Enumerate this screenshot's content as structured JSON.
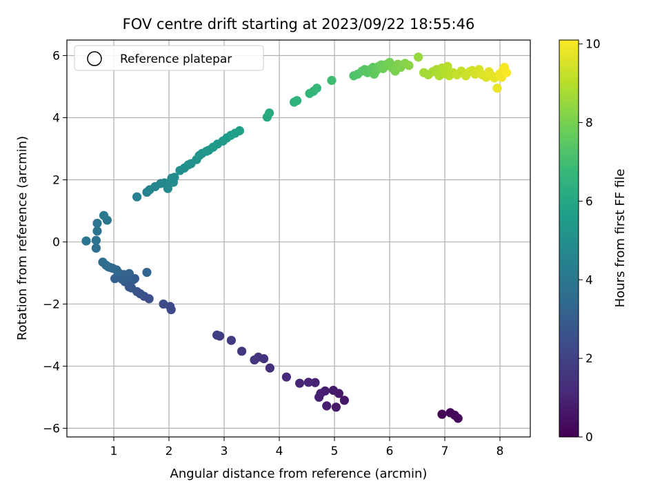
{
  "chart_data": {
    "type": "scatter",
    "title": "FOV centre drift starting at 2023/09/22 18:55:46",
    "xlabel": "Angular distance from reference (arcmin)",
    "ylabel": "Rotation from reference (arcmin)",
    "xlim": [
      0.15,
      8.55
    ],
    "ylim": [
      -6.28,
      6.5
    ],
    "xticks": [
      1,
      2,
      3,
      4,
      5,
      6,
      7,
      8
    ],
    "yticks": [
      -6,
      -4,
      -2,
      0,
      2,
      4,
      6
    ],
    "grid": true,
    "legend": {
      "entries": [
        "Reference platepar"
      ],
      "position": "top-left",
      "marker": "open-circle"
    },
    "colorbar": {
      "label": "Hours from first FF file",
      "range": [
        0,
        10.1
      ],
      "ticks": [
        0,
        2,
        4,
        6,
        8,
        10
      ],
      "colormap": "viridis",
      "colors": [
        "#440154",
        "#482878",
        "#3e4989",
        "#31688e",
        "#26828e",
        "#1f9e89",
        "#35b779",
        "#6ece58",
        "#b5de2b",
        "#fde725"
      ]
    },
    "points": [
      {
        "x": 6.95,
        "y": -5.55,
        "t": 0.05
      },
      {
        "x": 7.1,
        "y": -5.5,
        "t": 0.1
      },
      {
        "x": 7.18,
        "y": -5.58,
        "t": 0.15
      },
      {
        "x": 7.24,
        "y": -5.68,
        "t": 0.2
      },
      {
        "x": 5.18,
        "y": -5.1,
        "t": 0.6
      },
      {
        "x": 5.08,
        "y": -4.88,
        "t": 0.65
      },
      {
        "x": 5.03,
        "y": -5.32,
        "t": 0.7
      },
      {
        "x": 4.98,
        "y": -4.78,
        "t": 0.75
      },
      {
        "x": 4.86,
        "y": -5.28,
        "t": 0.8
      },
      {
        "x": 4.83,
        "y": -4.8,
        "t": 0.85
      },
      {
        "x": 4.75,
        "y": -4.88,
        "t": 0.9
      },
      {
        "x": 4.72,
        "y": -5.0,
        "t": 0.95
      },
      {
        "x": 4.65,
        "y": -4.53,
        "t": 1.0
      },
      {
        "x": 4.53,
        "y": -4.52,
        "t": 1.05
      },
      {
        "x": 4.37,
        "y": -4.55,
        "t": 1.1
      },
      {
        "x": 4.13,
        "y": -4.35,
        "t": 1.2
      },
      {
        "x": 3.83,
        "y": -4.06,
        "t": 1.35
      },
      {
        "x": 3.72,
        "y": -3.76,
        "t": 1.45
      },
      {
        "x": 3.62,
        "y": -3.71,
        "t": 1.5
      },
      {
        "x": 3.55,
        "y": -3.8,
        "t": 1.55
      },
      {
        "x": 3.32,
        "y": -3.52,
        "t": 1.65
      },
      {
        "x": 3.13,
        "y": -3.17,
        "t": 1.75
      },
      {
        "x": 2.92,
        "y": -3.03,
        "t": 1.85
      },
      {
        "x": 2.87,
        "y": -3.0,
        "t": 1.9
      },
      {
        "x": 2.04,
        "y": -2.18,
        "t": 2.2
      },
      {
        "x": 2.02,
        "y": -2.08,
        "t": 2.25
      },
      {
        "x": 1.9,
        "y": -2.0,
        "t": 2.3
      },
      {
        "x": 1.64,
        "y": -1.83,
        "t": 2.45
      },
      {
        "x": 1.55,
        "y": -1.75,
        "t": 2.5
      },
      {
        "x": 1.48,
        "y": -1.67,
        "t": 2.55
      },
      {
        "x": 1.42,
        "y": -1.6,
        "t": 2.6
      },
      {
        "x": 1.32,
        "y": -1.48,
        "t": 2.7
      },
      {
        "x": 1.28,
        "y": -1.45,
        "t": 2.75
      },
      {
        "x": 1.2,
        "y": -1.28,
        "t": 2.85
      },
      {
        "x": 1.35,
        "y": -1.22,
        "t": 2.9
      },
      {
        "x": 1.38,
        "y": -1.18,
        "t": 2.95
      },
      {
        "x": 1.15,
        "y": -1.2,
        "t": 3.0
      },
      {
        "x": 1.02,
        "y": -1.18,
        "t": 3.05
      },
      {
        "x": 1.25,
        "y": -1.12,
        "t": 3.1
      },
      {
        "x": 1.18,
        "y": -1.05,
        "t": 3.15
      },
      {
        "x": 1.28,
        "y": -1.02,
        "t": 3.2
      },
      {
        "x": 1.08,
        "y": -0.98,
        "t": 3.25
      },
      {
        "x": 1.6,
        "y": -0.98,
        "t": 3.3
      },
      {
        "x": 1.05,
        "y": -0.9,
        "t": 3.35
      },
      {
        "x": 0.98,
        "y": -0.85,
        "t": 3.4
      },
      {
        "x": 0.93,
        "y": -0.82,
        "t": 3.45
      },
      {
        "x": 0.9,
        "y": -0.8,
        "t": 3.5
      },
      {
        "x": 0.86,
        "y": -0.75,
        "t": 3.55
      },
      {
        "x": 0.8,
        "y": -0.65,
        "t": 3.6
      },
      {
        "x": 0.68,
        "y": -0.2,
        "t": 3.75
      },
      {
        "x": 0.68,
        "y": 0.05,
        "t": 3.8
      },
      {
        "x": 0.5,
        "y": 0.03,
        "t": 3.85
      },
      {
        "x": 0.7,
        "y": 0.35,
        "t": 3.9
      },
      {
        "x": 0.7,
        "y": 0.6,
        "t": 3.95
      },
      {
        "x": 0.88,
        "y": 0.7,
        "t": 4.0
      },
      {
        "x": 0.82,
        "y": 0.85,
        "t": 4.05
      },
      {
        "x": 1.42,
        "y": 1.45,
        "t": 4.4
      },
      {
        "x": 1.6,
        "y": 1.6,
        "t": 4.5
      },
      {
        "x": 1.65,
        "y": 1.68,
        "t": 4.55
      },
      {
        "x": 1.75,
        "y": 1.78,
        "t": 4.6
      },
      {
        "x": 1.85,
        "y": 1.88,
        "t": 4.65
      },
      {
        "x": 1.92,
        "y": 1.9,
        "t": 4.7
      },
      {
        "x": 1.98,
        "y": 1.72,
        "t": 4.75
      },
      {
        "x": 2.05,
        "y": 2.05,
        "t": 4.8
      },
      {
        "x": 2.1,
        "y": 2.08,
        "t": 4.85
      },
      {
        "x": 2.08,
        "y": 1.92,
        "t": 4.9
      },
      {
        "x": 2.2,
        "y": 2.3,
        "t": 4.95
      },
      {
        "x": 2.28,
        "y": 2.38,
        "t": 5.0
      },
      {
        "x": 2.35,
        "y": 2.48,
        "t": 5.05
      },
      {
        "x": 2.4,
        "y": 2.52,
        "t": 5.1
      },
      {
        "x": 2.5,
        "y": 2.65,
        "t": 5.15
      },
      {
        "x": 2.55,
        "y": 2.78,
        "t": 5.2
      },
      {
        "x": 2.6,
        "y": 2.85,
        "t": 5.25
      },
      {
        "x": 2.68,
        "y": 2.92,
        "t": 5.3
      },
      {
        "x": 2.72,
        "y": 2.95,
        "t": 5.35
      },
      {
        "x": 2.8,
        "y": 3.05,
        "t": 5.4
      },
      {
        "x": 2.88,
        "y": 3.15,
        "t": 5.45
      },
      {
        "x": 2.98,
        "y": 3.25,
        "t": 5.5
      },
      {
        "x": 3.05,
        "y": 3.35,
        "t": 5.55
      },
      {
        "x": 3.12,
        "y": 3.43,
        "t": 5.6
      },
      {
        "x": 3.2,
        "y": 3.5,
        "t": 5.65
      },
      {
        "x": 3.28,
        "y": 3.58,
        "t": 5.7
      },
      {
        "x": 3.78,
        "y": 4.02,
        "t": 6.1
      },
      {
        "x": 3.82,
        "y": 4.15,
        "t": 6.15
      },
      {
        "x": 4.27,
        "y": 4.5,
        "t": 6.45
      },
      {
        "x": 4.32,
        "y": 4.55,
        "t": 6.5
      },
      {
        "x": 4.55,
        "y": 4.78,
        "t": 6.65
      },
      {
        "x": 4.62,
        "y": 4.85,
        "t": 6.7
      },
      {
        "x": 4.68,
        "y": 4.95,
        "t": 6.75
      },
      {
        "x": 4.95,
        "y": 5.2,
        "t": 6.95
      },
      {
        "x": 5.35,
        "y": 5.35,
        "t": 7.25
      },
      {
        "x": 5.42,
        "y": 5.4,
        "t": 7.3
      },
      {
        "x": 5.5,
        "y": 5.5,
        "t": 7.35
      },
      {
        "x": 5.55,
        "y": 5.55,
        "t": 7.4
      },
      {
        "x": 5.6,
        "y": 5.45,
        "t": 7.45
      },
      {
        "x": 5.65,
        "y": 5.55,
        "t": 7.5
      },
      {
        "x": 5.7,
        "y": 5.62,
        "t": 7.55
      },
      {
        "x": 5.72,
        "y": 5.4,
        "t": 7.6
      },
      {
        "x": 5.75,
        "y": 5.5,
        "t": 7.65
      },
      {
        "x": 5.8,
        "y": 5.65,
        "t": 7.7
      },
      {
        "x": 5.85,
        "y": 5.7,
        "t": 7.75
      },
      {
        "x": 5.88,
        "y": 5.58,
        "t": 7.8
      },
      {
        "x": 5.92,
        "y": 5.65,
        "t": 7.85
      },
      {
        "x": 5.95,
        "y": 5.72,
        "t": 7.9
      },
      {
        "x": 6.0,
        "y": 5.78,
        "t": 7.95
      },
      {
        "x": 6.05,
        "y": 5.6,
        "t": 8.0
      },
      {
        "x": 6.1,
        "y": 5.5,
        "t": 8.05
      },
      {
        "x": 6.15,
        "y": 5.72,
        "t": 8.1
      },
      {
        "x": 6.2,
        "y": 5.62,
        "t": 8.15
      },
      {
        "x": 6.28,
        "y": 5.75,
        "t": 8.2
      },
      {
        "x": 6.35,
        "y": 5.68,
        "t": 8.3
      },
      {
        "x": 6.52,
        "y": 5.95,
        "t": 8.5
      },
      {
        "x": 6.62,
        "y": 5.45,
        "t": 8.65
      },
      {
        "x": 6.7,
        "y": 5.38,
        "t": 8.7
      },
      {
        "x": 6.78,
        "y": 5.48,
        "t": 8.75
      },
      {
        "x": 6.85,
        "y": 5.55,
        "t": 8.8
      },
      {
        "x": 6.9,
        "y": 5.35,
        "t": 8.85
      },
      {
        "x": 6.95,
        "y": 5.6,
        "t": 8.9
      },
      {
        "x": 7.0,
        "y": 5.42,
        "t": 8.95
      },
      {
        "x": 7.05,
        "y": 5.65,
        "t": 9.0
      },
      {
        "x": 7.08,
        "y": 5.35,
        "t": 9.05
      },
      {
        "x": 7.15,
        "y": 5.45,
        "t": 9.1
      },
      {
        "x": 7.22,
        "y": 5.38,
        "t": 9.2
      },
      {
        "x": 7.3,
        "y": 5.5,
        "t": 9.25
      },
      {
        "x": 7.38,
        "y": 5.35,
        "t": 9.3
      },
      {
        "x": 7.45,
        "y": 5.48,
        "t": 9.35
      },
      {
        "x": 7.5,
        "y": 5.52,
        "t": 9.4
      },
      {
        "x": 7.55,
        "y": 5.4,
        "t": 9.45
      },
      {
        "x": 7.62,
        "y": 5.55,
        "t": 9.5
      },
      {
        "x": 7.68,
        "y": 5.38,
        "t": 9.55
      },
      {
        "x": 7.75,
        "y": 5.3,
        "t": 9.6
      },
      {
        "x": 7.8,
        "y": 5.48,
        "t": 9.65
      },
      {
        "x": 7.85,
        "y": 5.35,
        "t": 9.7
      },
      {
        "x": 7.9,
        "y": 5.28,
        "t": 9.75
      },
      {
        "x": 7.95,
        "y": 4.95,
        "t": 9.8
      },
      {
        "x": 8.0,
        "y": 5.42,
        "t": 9.85
      },
      {
        "x": 8.03,
        "y": 5.3,
        "t": 9.9
      },
      {
        "x": 8.06,
        "y": 5.55,
        "t": 9.95
      },
      {
        "x": 8.08,
        "y": 5.62,
        "t": 10.0
      },
      {
        "x": 8.12,
        "y": 5.45,
        "t": 10.05
      }
    ]
  }
}
